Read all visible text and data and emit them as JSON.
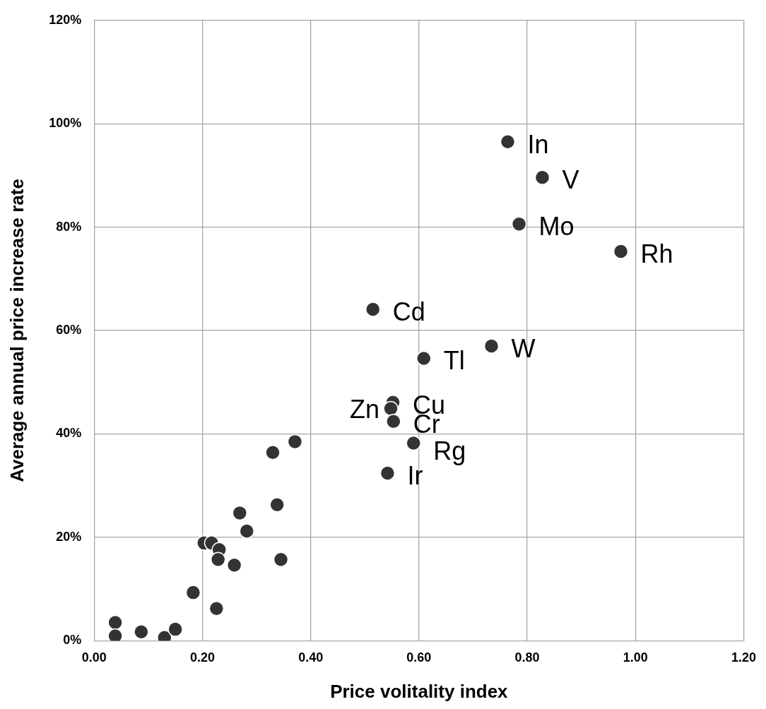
{
  "chart_data": {
    "type": "scatter",
    "xlabel": "Price volitality index",
    "ylabel": "Average annual price increase rate",
    "xlim": [
      0,
      1.2
    ],
    "xticks": [
      {
        "value": 0,
        "label": "0.00"
      },
      {
        "value": 0.2,
        "label": "0.20"
      },
      {
        "value": 0.4,
        "label": "0.40"
      },
      {
        "value": 0.6,
        "label": "0.60"
      },
      {
        "value": 0.8,
        "label": "0.80"
      },
      {
        "value": 1,
        "label": "1.00"
      },
      {
        "value": 1.2,
        "label": "1.20"
      }
    ],
    "ylim": [
      0,
      120
    ],
    "yticks": [
      {
        "value": 0,
        "label": "0%"
      },
      {
        "value": 20,
        "label": "20%"
      },
      {
        "value": 40,
        "label": "40%"
      },
      {
        "value": 60,
        "label": "60%"
      },
      {
        "value": 80,
        "label": "80%"
      },
      {
        "value": 100,
        "label": "100%"
      },
      {
        "value": 120,
        "label": "120%"
      }
    ],
    "grid": true,
    "legend": false,
    "marker": "circle",
    "series": [
      {
        "color": "#333333",
        "x": [
          0.764,
          0.828,
          0.785,
          0.973,
          0.515,
          0.734,
          0.609,
          0.552,
          0.548,
          0.553,
          0.59,
          0.542,
          0.371,
          0.33,
          0.338,
          0.269,
          0.282,
          0.203,
          0.217,
          0.231,
          0.229,
          0.259,
          0.345,
          0.183,
          0.226,
          0.039,
          0.039,
          0.087,
          0.13,
          0.15
        ],
        "values": [
          96.5,
          89.6,
          80.6,
          75.3,
          64.1,
          57.0,
          54.6,
          46.1,
          44.9,
          42.4,
          38.2,
          32.4,
          38.5,
          36.4,
          26.3,
          24.7,
          21.2,
          18.9,
          18.9,
          17.6,
          15.7,
          14.6,
          15.7,
          9.3,
          6.2,
          3.5,
          0.9,
          1.7,
          0.6,
          2.2
        ]
      }
    ],
    "annotations": [
      {
        "text": "In",
        "x": 0.764,
        "y": 96.5
      },
      {
        "text": "V",
        "x": 0.828,
        "y": 89.6
      },
      {
        "text": "Mo",
        "x": 0.785,
        "y": 80.6
      },
      {
        "text": "Rh",
        "x": 0.973,
        "y": 75.3
      },
      {
        "text": "Cd",
        "x": 0.515,
        "y": 64.1
      },
      {
        "text": "W",
        "x": 0.734,
        "y": 57.0
      },
      {
        "text": "Tl",
        "x": 0.609,
        "y": 54.6
      },
      {
        "text": "Cu",
        "x": 0.552,
        "y": 46.1
      },
      {
        "text": "Zn",
        "x": 0.548,
        "y": 44.9
      },
      {
        "text": "Cr",
        "x": 0.553,
        "y": 42.4
      },
      {
        "text": "Rg",
        "x": 0.59,
        "y": 38.2
      },
      {
        "text": "Ir",
        "x": 0.542,
        "y": 32.4
      }
    ]
  }
}
